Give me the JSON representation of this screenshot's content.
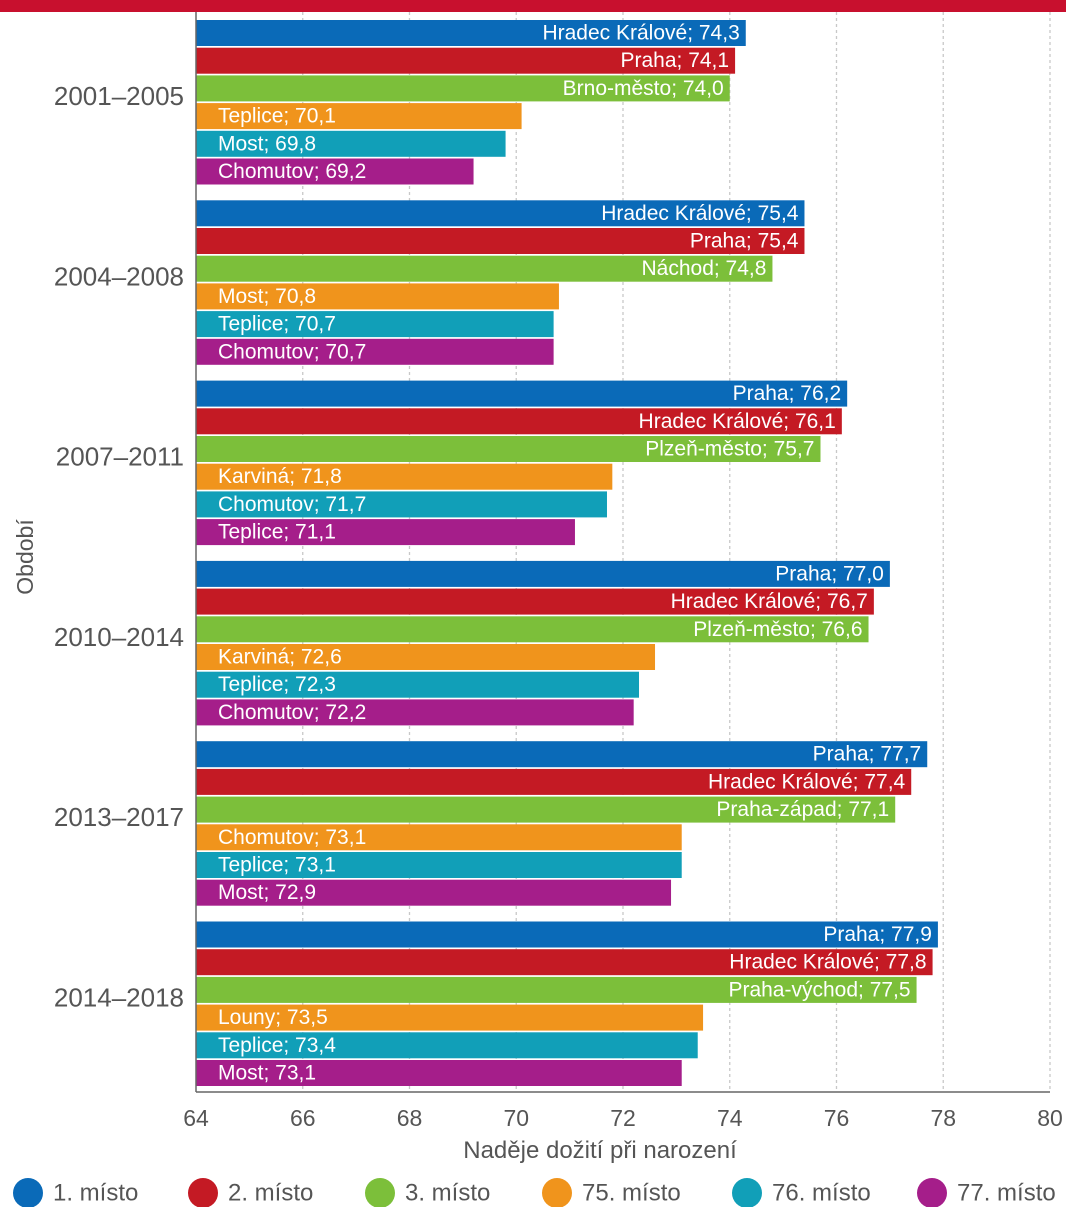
{
  "chart_data": {
    "type": "bar",
    "orientation": "horizontal",
    "xlabel": "Naděje dožití při narození",
    "ylabel": "Období",
    "xlim": [
      64,
      80
    ],
    "xticks": [
      64,
      66,
      68,
      70,
      72,
      74,
      76,
      78,
      80
    ],
    "grid": "vertical dashed",
    "legend_position": "bottom",
    "series": [
      {
        "name": "1. místo",
        "color": "#0a6ab8"
      },
      {
        "name": "2. místo",
        "color": "#c41a24"
      },
      {
        "name": "3. místo",
        "color": "#7cbf3a"
      },
      {
        "name": "75. místo",
        "color": "#f0941c"
      },
      {
        "name": "76. místo",
        "color": "#119fb8"
      },
      {
        "name": "77. místo",
        "color": "#a51e8a"
      }
    ],
    "groups": [
      {
        "period": "2001–2005",
        "bars": [
          {
            "district": "Hradec Králové",
            "value": 74.3,
            "label": "Hradec Králové; 74,3"
          },
          {
            "district": "Praha",
            "value": 74.1,
            "label": "Praha; 74,1"
          },
          {
            "district": "Brno-město",
            "value": 74.0,
            "label": "Brno-město; 74,0"
          },
          {
            "district": "Teplice",
            "value": 70.1,
            "label": "Teplice; 70,1"
          },
          {
            "district": "Most",
            "value": 69.8,
            "label": "Most; 69,8"
          },
          {
            "district": "Chomutov",
            "value": 69.2,
            "label": "Chomutov; 69,2"
          }
        ]
      },
      {
        "period": "2004–2008",
        "bars": [
          {
            "district": "Hradec Králové",
            "value": 75.4,
            "label": "Hradec Králové; 75,4"
          },
          {
            "district": "Praha",
            "value": 75.4,
            "label": "Praha; 75,4"
          },
          {
            "district": "Náchod",
            "value": 74.8,
            "label": "Náchod; 74,8"
          },
          {
            "district": "Most",
            "value": 70.8,
            "label": "Most; 70,8"
          },
          {
            "district": "Teplice",
            "value": 70.7,
            "label": "Teplice; 70,7"
          },
          {
            "district": "Chomutov",
            "value": 70.7,
            "label": "Chomutov; 70,7"
          }
        ]
      },
      {
        "period": "2007–2011",
        "bars": [
          {
            "district": "Praha",
            "value": 76.2,
            "label": "Praha; 76,2"
          },
          {
            "district": "Hradec Králové",
            "value": 76.1,
            "label": "Hradec Králové; 76,1"
          },
          {
            "district": "Plzeň-město",
            "value": 75.7,
            "label": "Plzeň-město; 75,7"
          },
          {
            "district": "Karviná",
            "value": 71.8,
            "label": "Karviná; 71,8"
          },
          {
            "district": "Chomutov",
            "value": 71.7,
            "label": "Chomutov; 71,7"
          },
          {
            "district": "Teplice",
            "value": 71.1,
            "label": "Teplice; 71,1"
          }
        ]
      },
      {
        "period": "2010–2014",
        "bars": [
          {
            "district": "Praha",
            "value": 77.0,
            "label": "Praha; 77,0"
          },
          {
            "district": "Hradec Králové",
            "value": 76.7,
            "label": "Hradec Králové; 76,7"
          },
          {
            "district": "Plzeň-město",
            "value": 76.6,
            "label": "Plzeň-město; 76,6"
          },
          {
            "district": "Karviná",
            "value": 72.6,
            "label": "Karviná; 72,6"
          },
          {
            "district": "Teplice",
            "value": 72.3,
            "label": "Teplice; 72,3"
          },
          {
            "district": "Chomutov",
            "value": 72.2,
            "label": "Chomutov; 72,2"
          }
        ]
      },
      {
        "period": "2013–2017",
        "bars": [
          {
            "district": "Praha",
            "value": 77.7,
            "label": "Praha; 77,7"
          },
          {
            "district": "Hradec Králové",
            "value": 77.4,
            "label": "Hradec Králové; 77,4"
          },
          {
            "district": "Praha-západ",
            "value": 77.1,
            "label": "Praha-západ; 77,1"
          },
          {
            "district": "Chomutov",
            "value": 73.1,
            "label": "Chomutov; 73,1"
          },
          {
            "district": "Teplice",
            "value": 73.1,
            "label": "Teplice; 73,1"
          },
          {
            "district": "Most",
            "value": 72.9,
            "label": "Most; 72,9"
          }
        ]
      },
      {
        "period": "2014–2018",
        "bars": [
          {
            "district": "Praha",
            "value": 77.9,
            "label": "Praha; 77,9"
          },
          {
            "district": "Hradec Králové",
            "value": 77.8,
            "label": "Hradec Králové; 77,8"
          },
          {
            "district": "Praha-východ",
            "value": 77.5,
            "label": "Praha-východ; 77,5"
          },
          {
            "district": "Louny",
            "value": 73.5,
            "label": "Louny; 73,5"
          },
          {
            "district": "Teplice",
            "value": 73.4,
            "label": "Teplice; 73,4"
          },
          {
            "district": "Most",
            "value": 73.1,
            "label": "Most; 73,1"
          }
        ]
      }
    ]
  }
}
